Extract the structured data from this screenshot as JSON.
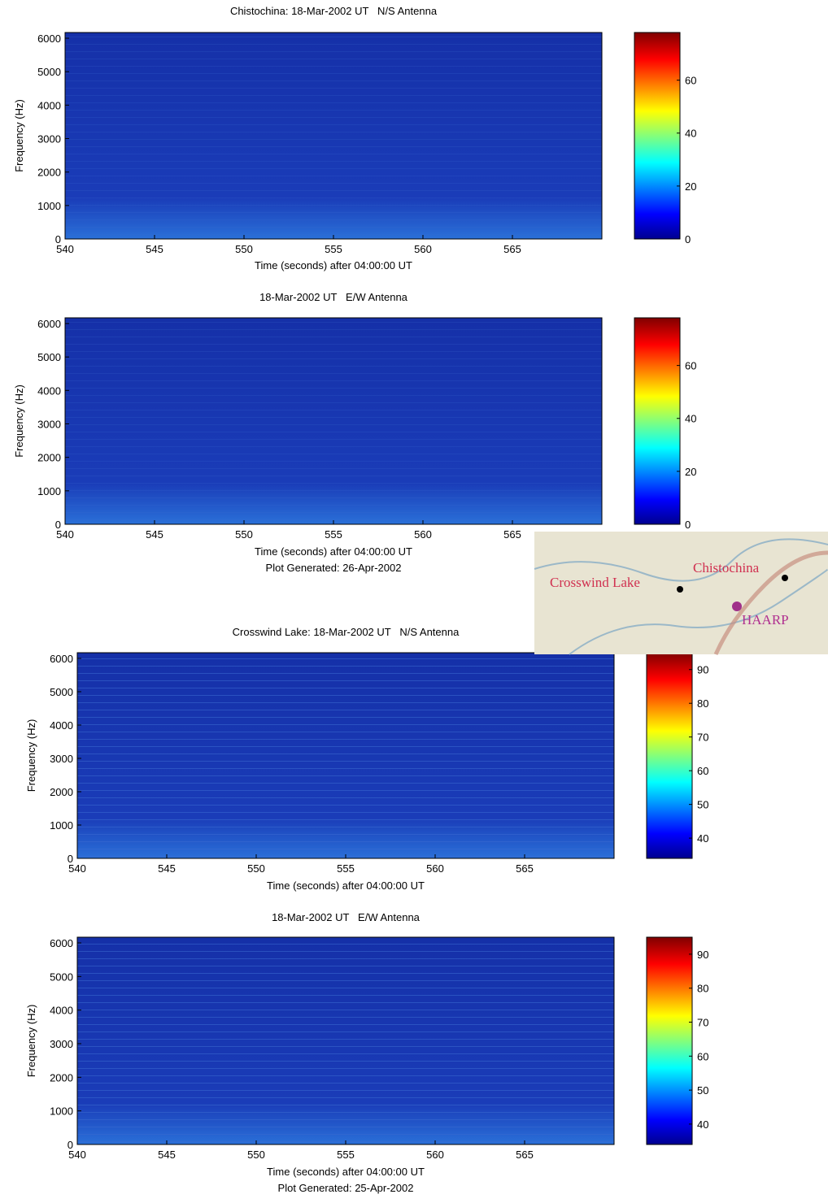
{
  "chart_data": [
    {
      "type": "spectrogram",
      "title": "Chistochina: 18-Mar-2002 UT   N/S Antenna",
      "xlabel": "Time (seconds) after 04:00:00 UT",
      "ylabel": "Frequency (Hz)",
      "xlim": [
        540,
        570
      ],
      "xticks": [
        540,
        545,
        550,
        555,
        560,
        565
      ],
      "ylim": [
        0,
        6170
      ],
      "yticks": [
        0,
        1000,
        2000,
        3000,
        4000,
        5000,
        6000
      ],
      "colormap": "jet",
      "clim": [
        0,
        78
      ],
      "cticks": [
        0,
        20,
        40,
        60
      ]
    },
    {
      "type": "spectrogram",
      "title": "18-Mar-2002 UT   E/W Antenna",
      "xlabel": "Time (seconds) after 04:00:00 UT",
      "note": "Plot Generated: 26-Apr-2002",
      "ylabel": "Frequency (Hz)",
      "xlim": [
        540,
        570
      ],
      "xticks": [
        540,
        545,
        550,
        555,
        560,
        565
      ],
      "ylim": [
        0,
        6170
      ],
      "yticks": [
        0,
        1000,
        2000,
        3000,
        4000,
        5000,
        6000
      ],
      "colormap": "jet",
      "clim": [
        0,
        78
      ],
      "cticks": [
        0,
        20,
        40,
        60
      ]
    },
    {
      "type": "spectrogram",
      "title": "Crosswind Lake: 18-Mar-2002 UT   N/S Antenna",
      "xlabel": "Time (seconds) after 04:00:00 UT",
      "ylabel": "Frequency (Hz)",
      "xlim": [
        540,
        570
      ],
      "xticks": [
        540,
        545,
        550,
        555,
        560,
        565
      ],
      "ylim": [
        0,
        6170
      ],
      "yticks": [
        0,
        1000,
        2000,
        3000,
        4000,
        5000,
        6000
      ],
      "colormap": "jet",
      "clim": [
        34,
        95
      ],
      "cticks": [
        40,
        50,
        60,
        70,
        80,
        90
      ]
    },
    {
      "type": "spectrogram",
      "title": "18-Mar-2002 UT   E/W Antenna",
      "xlabel": "Time (seconds) after 04:00:00 UT",
      "note": "Plot Generated: 25-Apr-2002",
      "ylabel": "Frequency (Hz)",
      "xlim": [
        540,
        570
      ],
      "xticks": [
        540,
        545,
        550,
        555,
        560,
        565
      ],
      "ylim": [
        0,
        6170
      ],
      "yticks": [
        0,
        1000,
        2000,
        3000,
        4000,
        5000,
        6000
      ],
      "colormap": "jet",
      "clim": [
        34,
        95
      ],
      "cticks": [
        40,
        50,
        60,
        70,
        80,
        90
      ]
    }
  ],
  "inset_map": {
    "places": [
      "Crosswind Lake",
      "Chistochina",
      "HAARP"
    ]
  }
}
